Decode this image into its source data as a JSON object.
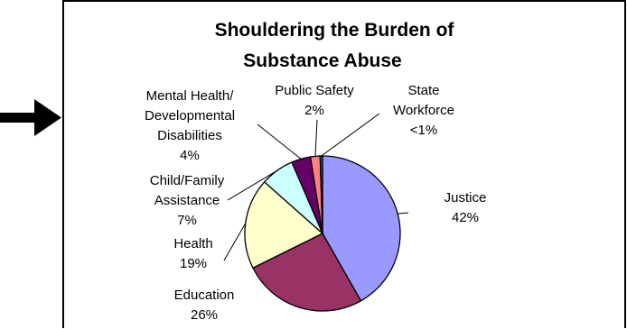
{
  "chart_data": {
    "type": "pie",
    "title_lines": [
      "Shouldering the Burden of",
      "Substance Abuse"
    ],
    "slices": [
      {
        "label_lines": [
          "Justice"
        ],
        "value_text": "42%",
        "value": 42,
        "color": "#9999ff"
      },
      {
        "label_lines": [
          "Education"
        ],
        "value_text": "26%",
        "value": 26,
        "color": "#993366"
      },
      {
        "label_lines": [
          "Health"
        ],
        "value_text": "19%",
        "value": 19,
        "color": "#ffffcc"
      },
      {
        "label_lines": [
          "Child/Family",
          "Assistance"
        ],
        "value_text": "7%",
        "value": 7,
        "color": "#ccffff"
      },
      {
        "label_lines": [
          "Mental Health/",
          "Developmental",
          "Disabilities"
        ],
        "value_text": "4%",
        "value": 4,
        "color": "#660066"
      },
      {
        "label_lines": [
          "Public Safety"
        ],
        "value_text": "2%",
        "value": 2,
        "color": "#ff8080"
      },
      {
        "label_lines": [
          "State",
          "Workforce"
        ],
        "value_text": "<1%",
        "value": 0.5,
        "color": "#0066cc"
      }
    ],
    "legend": "none"
  }
}
